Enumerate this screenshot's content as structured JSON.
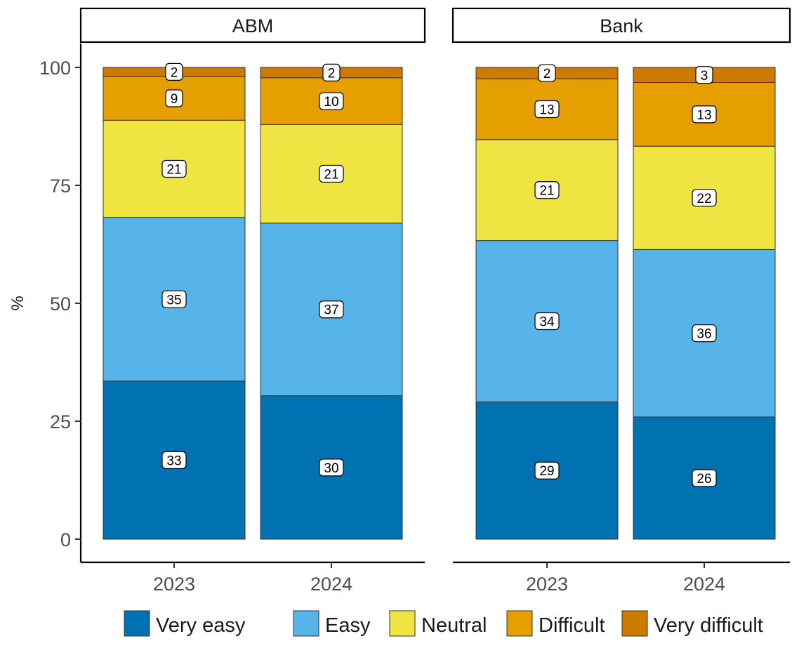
{
  "chart_data": {
    "type": "bar",
    "stacked": true,
    "ylabel": "%",
    "xlabel": "",
    "ylim": [
      0,
      100
    ],
    "yticks": [
      0,
      25,
      50,
      75,
      100
    ],
    "grid": false,
    "legend_position": "bottom",
    "categories": [
      "2023",
      "2024"
    ],
    "facets": [
      {
        "name": "ABM",
        "series": [
          {
            "name": "Very easy",
            "values": [
              33.5,
              30.4
            ],
            "labels": [
              "33",
              "30"
            ]
          },
          {
            "name": "Easy",
            "values": [
              34.7,
              36.6
            ],
            "labels": [
              "35",
              "37"
            ]
          },
          {
            "name": "Neutral",
            "values": [
              20.6,
              20.9
            ],
            "labels": [
              "21",
              "21"
            ]
          },
          {
            "name": "Difficult",
            "values": [
              9.3,
              9.9
            ],
            "labels": [
              "9",
              "10"
            ]
          },
          {
            "name": "Very difficult",
            "values": [
              1.9,
              2.2
            ],
            "labels": [
              "2",
              "2"
            ]
          }
        ]
      },
      {
        "name": "Bank",
        "series": [
          {
            "name": "Very easy",
            "values": [
              29.1,
              25.9
            ],
            "labels": [
              "29",
              "26"
            ]
          },
          {
            "name": "Easy",
            "values": [
              34.2,
              35.5
            ],
            "labels": [
              "34",
              "36"
            ]
          },
          {
            "name": "Neutral",
            "values": [
              21.4,
              21.9
            ],
            "labels": [
              "21",
              "22"
            ]
          },
          {
            "name": "Difficult",
            "values": [
              12.9,
              13.5
            ],
            "labels": [
              "13",
              "13"
            ]
          },
          {
            "name": "Very difficult",
            "values": [
              2.4,
              3.2
            ],
            "labels": [
              "2",
              "3"
            ]
          }
        ]
      }
    ],
    "colors": {
      "Very easy": "#0072B2",
      "Easy": "#56B4E9",
      "Neutral": "#F0E442",
      "Difficult": "#E69F00",
      "Very difficult": "#CC7A00"
    }
  }
}
